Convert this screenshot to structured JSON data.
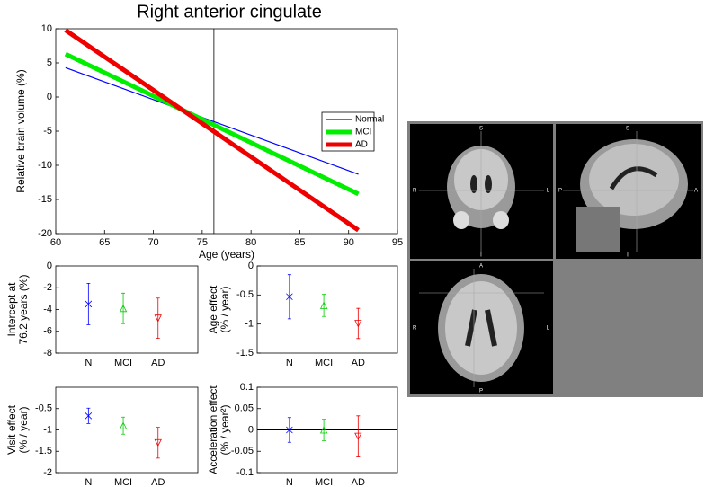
{
  "chart_data": [
    {
      "type": "line",
      "title": "Right anterior cingulate",
      "xlabel": "Age (years)",
      "ylabel": "Relative brain volume (%)",
      "x": [
        61,
        91
      ],
      "series": [
        {
          "name": "Normal",
          "color": "#0000ff",
          "values": [
            4.3,
            -11.3
          ]
        },
        {
          "name": "MCI",
          "color": "#00ee00",
          "values": [
            6.3,
            -14.2
          ]
        },
        {
          "name": "AD",
          "color": "#ee0000",
          "values": [
            9.8,
            -19.5
          ]
        }
      ],
      "vline": 76.2,
      "xlim": [
        60,
        95
      ],
      "xticks": [
        60,
        65,
        70,
        75,
        80,
        85,
        90,
        95
      ],
      "ylim": [
        -20,
        10
      ],
      "yticks": [
        -20,
        -15,
        -10,
        -5,
        0,
        5,
        10
      ],
      "legend": "right"
    },
    {
      "type": "errorbar",
      "ylabel": [
        "Intercept at",
        "76.2 years (%)"
      ],
      "categories": [
        "N",
        "MCI",
        "AD"
      ],
      "values": [
        -3.5,
        -3.9,
        -4.8
      ],
      "errors": [
        1.9,
        1.4,
        1.85
      ],
      "colors": [
        "#0000ff",
        "#00cc00",
        "#ee0000"
      ],
      "markers": [
        "x",
        "^",
        "v"
      ],
      "ylim": [
        -8,
        0
      ],
      "yticks": [
        -8,
        -6,
        -4,
        -2,
        0
      ]
    },
    {
      "type": "errorbar",
      "ylabel": [
        "Age effect",
        "(% / year)"
      ],
      "categories": [
        "N",
        "MCI",
        "AD"
      ],
      "values": [
        -0.53,
        -0.68,
        -0.99
      ],
      "errors": [
        0.38,
        0.19,
        0.26
      ],
      "colors": [
        "#0000ff",
        "#00cc00",
        "#ee0000"
      ],
      "markers": [
        "x",
        "^",
        "v"
      ],
      "ylim": [
        -1.5,
        0
      ],
      "yticks": [
        -1.5,
        -1,
        -0.5,
        0
      ]
    },
    {
      "type": "errorbar",
      "ylabel": [
        "Visit effect",
        "(% / year)"
      ],
      "categories": [
        "N",
        "MCI",
        "AD"
      ],
      "values": [
        -0.67,
        -0.9,
        -1.3
      ],
      "errors": [
        0.18,
        0.2,
        0.36
      ],
      "colors": [
        "#0000ff",
        "#00cc00",
        "#ee0000"
      ],
      "markers": [
        "x",
        "^",
        "v"
      ],
      "ylim": [
        -2,
        0
      ],
      "yticks": [
        -2,
        -1.5,
        -1,
        -0.5
      ]
    },
    {
      "type": "errorbar",
      "ylabel": [
        "Acceleration effect",
        "(% / year²)"
      ],
      "categories": [
        "N",
        "MCI",
        "AD"
      ],
      "values": [
        0,
        0,
        -0.015
      ],
      "errors": [
        0.029,
        0.025,
        0.048
      ],
      "colors": [
        "#0000ff",
        "#00cc00",
        "#ee0000"
      ],
      "markers": [
        "x",
        "^",
        "v"
      ],
      "ylim": [
        -0.1,
        0.1
      ],
      "yticks": [
        -0.1,
        -0.05,
        0,
        0.05,
        0.1
      ],
      "hline": 0
    }
  ],
  "brain_views": [
    {
      "top": "S",
      "left": "R",
      "right": "L",
      "bottom": "I"
    },
    {
      "top": "S",
      "left": "P",
      "right": "A",
      "bottom": "I"
    },
    {
      "top": "A",
      "left": "R",
      "right": "L",
      "bottom": "P"
    }
  ]
}
